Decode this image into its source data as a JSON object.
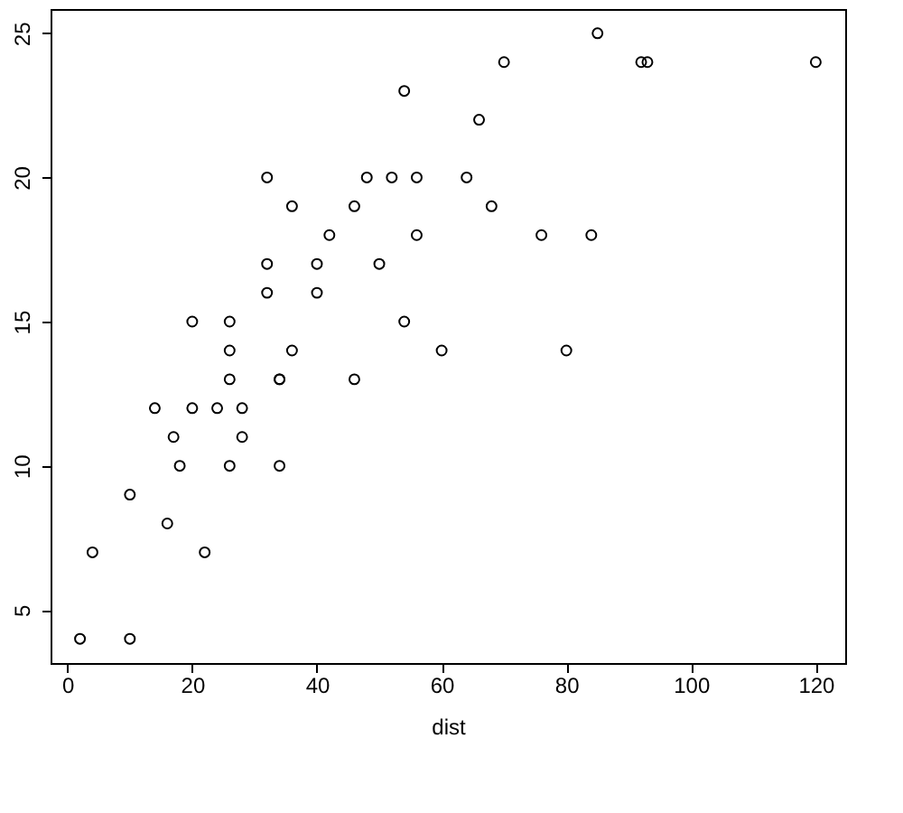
{
  "chart_data": {
    "type": "scatter",
    "xlabel": "dist",
    "x": [
      2,
      10,
      4,
      22,
      16,
      10,
      18,
      26,
      34,
      17,
      28,
      14,
      20,
      24,
      28,
      26,
      34,
      34,
      46,
      26,
      36,
      60,
      80,
      20,
      26,
      54,
      32,
      40,
      32,
      40,
      50,
      42,
      56,
      76,
      84,
      36,
      46,
      68,
      32,
      48,
      52,
      56,
      64,
      66,
      54,
      70,
      92,
      93,
      120,
      85
    ],
    "values": [
      4,
      4,
      7,
      7,
      8,
      9,
      10,
      10,
      10,
      11,
      11,
      12,
      12,
      12,
      12,
      13,
      13,
      13,
      13,
      14,
      14,
      14,
      14,
      15,
      15,
      15,
      16,
      16,
      17,
      17,
      17,
      18,
      18,
      18,
      18,
      19,
      19,
      19,
      20,
      20,
      20,
      20,
      20,
      22,
      23,
      24,
      24,
      24,
      24,
      25
    ],
    "color": "#000000",
    "marker": "circle",
    "grid": false,
    "xlim": [
      -2.72,
      124.72
    ],
    "ylim": [
      3.16,
      25.84
    ],
    "xticks": [
      0,
      20,
      40,
      60,
      80,
      100,
      120
    ],
    "yticks": [
      5,
      10,
      15,
      20,
      25
    ]
  }
}
